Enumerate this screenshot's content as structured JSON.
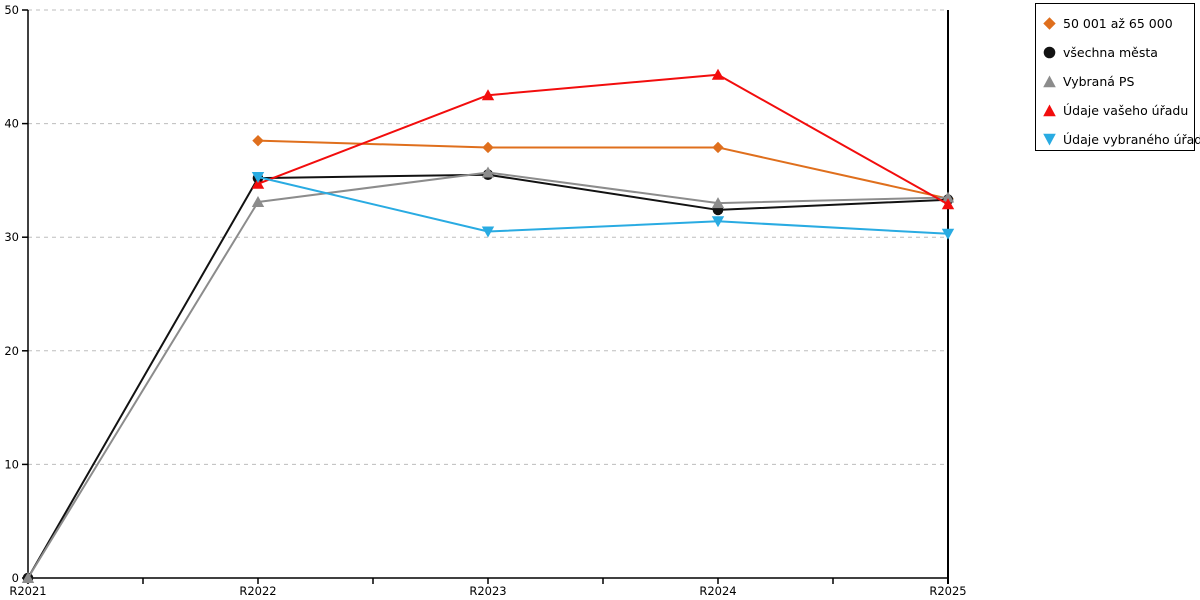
{
  "chart_data": {
    "type": "line",
    "title": "",
    "xlabel": "",
    "ylabel": "",
    "categories": [
      "R2021",
      "R2022",
      "R2023",
      "R2024",
      "R2025"
    ],
    "y_ticks": [
      0,
      10,
      20,
      30,
      40,
      50
    ],
    "ylim": [
      0,
      50
    ],
    "grid": "horizontal-dashed",
    "legend_position": "top-right-outside",
    "series": [
      {
        "name": "50 001 až 65 000",
        "color": "#df6f1d",
        "marker": "diamond",
        "values": [
          null,
          38.5,
          37.9,
          37.9,
          33.4
        ]
      },
      {
        "name": "všechna města",
        "color": "#121212",
        "marker": "circle",
        "values": [
          0,
          35.2,
          35.5,
          32.4,
          33.3
        ]
      },
      {
        "name": "Vybraná PS",
        "color": "#8c8c8c",
        "marker": "triangle-up",
        "values": [
          0,
          33.1,
          35.7,
          33.0,
          33.5
        ]
      },
      {
        "name": "Údaje vašeho úřadu",
        "color": "#f20d0d",
        "marker": "triangle-up",
        "values": [
          null,
          34.7,
          42.5,
          44.3,
          32.9
        ]
      },
      {
        "name": "Údaje vybraného úřadu",
        "color": "#29abe2",
        "marker": "triangle-down",
        "values": [
          null,
          35.3,
          30.5,
          31.4,
          30.3
        ]
      }
    ]
  },
  "axes": {
    "x_labels": [
      "R2021",
      "R2022",
      "R2023",
      "R2024",
      "R2025"
    ],
    "y_labels": [
      "0",
      "10",
      "20",
      "30",
      "40",
      "50"
    ]
  },
  "colors": {
    "background": "#ffffff",
    "grid": "#bdbdbd",
    "axis": "#000000",
    "legend_border": "#000000",
    "text": "#000000"
  }
}
